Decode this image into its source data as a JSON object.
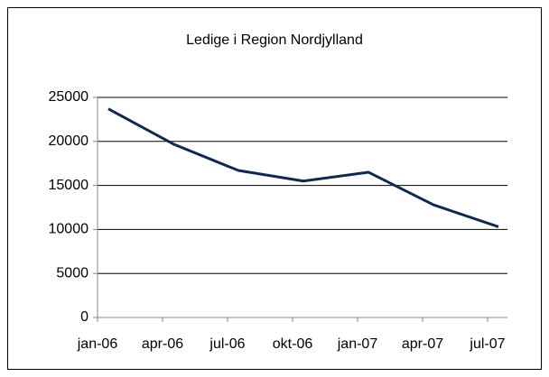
{
  "chart_data": {
    "type": "line",
    "title": "Ledige i Region Nordjylland",
    "categories": [
      "jan-06",
      "apr-06",
      "jul-06",
      "okt-06",
      "jan-07",
      "apr-07",
      "jul-07"
    ],
    "series": [
      {
        "name": "Ledige",
        "color": "#10294d",
        "values": [
          23700,
          19700,
          16700,
          15500,
          16500,
          12800,
          10300
        ]
      }
    ],
    "ylim": [
      0,
      25000
    ],
    "yticks": [
      0,
      5000,
      10000,
      15000,
      20000,
      25000
    ],
    "grid": true
  }
}
